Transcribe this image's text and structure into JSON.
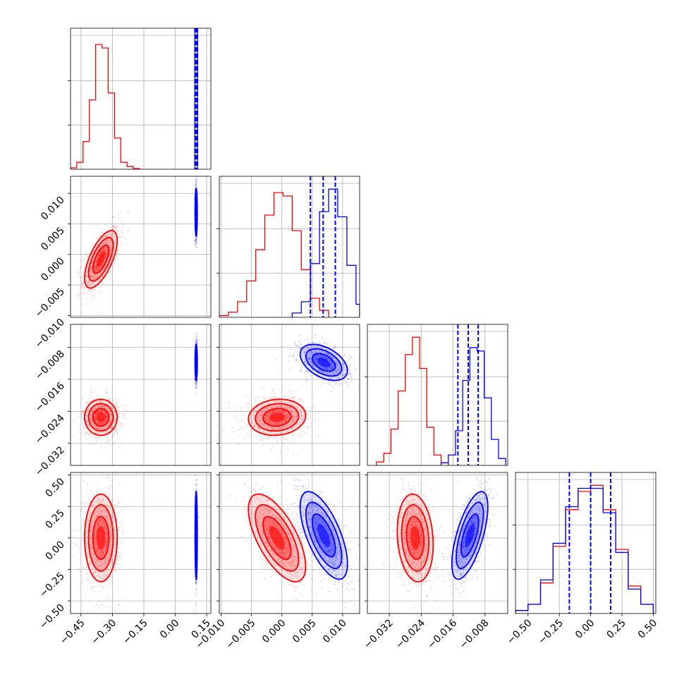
{
  "chart_data": {
    "type": "corner",
    "title": "",
    "grid": true,
    "legend": "none",
    "colors": {
      "series_a": "#ff0000",
      "series_b": "#0000ff"
    },
    "series": [
      {
        "color": "#ff0000"
      },
      {
        "color": "#0000ff"
      }
    ],
    "parameters": [
      {
        "range": [
          -0.5,
          0.17
        ],
        "ticks": [
          -0.45,
          -0.3,
          -0.15,
          0.0,
          0.15
        ],
        "tick_labels": [
          "−0.45",
          "−0.30",
          "−0.15",
          "0.00",
          "0.15"
        ]
      },
      {
        "range": [
          -0.0103,
          0.0128
        ],
        "ticks": [
          -0.01,
          -0.005,
          0.0,
          0.005,
          0.01
        ],
        "tick_labels": [
          "−0.010",
          "−0.005",
          "0.000",
          "0.005",
          "0.010"
        ]
      },
      {
        "range": [
          -0.0375,
          -0.0023
        ],
        "ticks": [
          -0.032,
          -0.024,
          -0.016,
          -0.008
        ],
        "tick_labels": [
          "−0.032",
          "−0.024",
          "−0.016",
          "−0.008"
        ]
      },
      {
        "range": [
          -0.6,
          0.52
        ],
        "ticks": [
          -0.5,
          -0.25,
          0.0,
          0.25,
          0.5
        ],
        "tick_labels": [
          "−0.50",
          "−0.25",
          "0.00",
          "0.25",
          "0.50"
        ]
      }
    ],
    "marginals": [
      {
        "param": 0,
        "red": {
          "edges": [
            -0.5,
            -0.47,
            -0.44,
            -0.41,
            -0.38,
            -0.35,
            -0.32,
            -0.29,
            -0.26,
            -0.23,
            -0.2,
            -0.17
          ],
          "counts": [
            2,
            10,
            40,
            100,
            180,
            175,
            110,
            45,
            10,
            4,
            1
          ]
        },
        "blue": {
          "edges": [
            0.094,
            0.1,
            0.106
          ],
          "counts": [
            400,
            400
          ]
        },
        "quantiles_blue": [
          0.094,
          0.1,
          0.106
        ]
      },
      {
        "param": 1,
        "red": {
          "edges": [
            -0.0103,
            -0.0088,
            -0.0073,
            -0.0058,
            -0.0043,
            -0.0028,
            -0.0013,
            0.0002,
            0.0017,
            0.0032,
            0.0047,
            0.0062,
            0.0077
          ],
          "counts": [
            2,
            6,
            18,
            42,
            78,
            118,
            144,
            140,
            100,
            55,
            22,
            8
          ]
        },
        "blue": {
          "edges": [
            0.0017,
            0.0032,
            0.0047,
            0.0062,
            0.0077,
            0.0092,
            0.0107,
            0.0122,
            0.0128
          ],
          "counts": [
            5,
            18,
            62,
            122,
            148,
            116,
            60,
            15
          ]
        },
        "quantiles_blue": [
          0.0047,
          0.0068,
          0.0088
        ]
      },
      {
        "param": 2,
        "red": {
          "edges": [
            -0.0352,
            -0.0334,
            -0.0316,
            -0.0298,
            -0.028,
            -0.0262,
            -0.0244,
            -0.0226,
            -0.0208,
            -0.019,
            -0.0172
          ],
          "counts": [
            4,
            14,
            42,
            86,
            128,
            148,
            112,
            44,
            12,
            3
          ]
        },
        "blue": {
          "edges": [
            -0.019,
            -0.0172,
            -0.0154,
            -0.0136,
            -0.0118,
            -0.01,
            -0.0082,
            -0.0064,
            -0.0046,
            -0.0028
          ],
          "counts": [
            3,
            12,
            40,
            98,
            136,
            132,
            78,
            30,
            8
          ]
        },
        "quantiles_blue": [
          -0.0148,
          -0.0122,
          -0.0097
        ]
      },
      {
        "param": 3,
        "red": {
          "edges": [
            -0.6,
            -0.5,
            -0.4,
            -0.3,
            -0.2,
            -0.1,
            0.0,
            0.1,
            0.2,
            0.3,
            0.4,
            0.5
          ],
          "counts": [
            1,
            3,
            10,
            22,
            34,
            40,
            42,
            34,
            21,
            9,
            3
          ]
        },
        "blue": {
          "edges": [
            -0.6,
            -0.5,
            -0.4,
            -0.3,
            -0.2,
            -0.1,
            0.0,
            0.1,
            0.2,
            0.3,
            0.4,
            0.5
          ],
          "counts": [
            1,
            3,
            11,
            23,
            35,
            41,
            41,
            33,
            20,
            8,
            3
          ]
        },
        "quantiles_blue": [
          -0.17,
          0.0,
          0.16
        ]
      }
    ],
    "joints": [
      {
        "x": 0,
        "y": 1,
        "red": {
          "mean": [
            -0.355,
            -0.0008
          ],
          "sd": [
            0.038,
            0.0023
          ],
          "corr": 0.65
        },
        "blue": {
          "mean": [
            0.1,
            0.0069
          ],
          "sd": [
            0.0025,
            0.0019
          ],
          "corr": 0.0
        }
      },
      {
        "x": 0,
        "y": 2,
        "red": {
          "mean": [
            -0.355,
            -0.0255
          ],
          "sd": [
            0.038,
            0.0022
          ],
          "corr": 0.0
        },
        "blue": {
          "mean": [
            0.1,
            -0.0118
          ],
          "sd": [
            0.0025,
            0.0022
          ],
          "corr": 0.0
        }
      },
      {
        "x": 1,
        "y": 2,
        "red": {
          "mean": [
            -0.0008,
            -0.0255
          ],
          "sd": [
            0.0023,
            0.0022
          ],
          "corr": 0.1
        },
        "blue": {
          "mean": [
            0.0069,
            -0.0118
          ],
          "sd": [
            0.0019,
            0.0022
          ],
          "corr": -0.45
        }
      },
      {
        "x": 0,
        "y": 3,
        "red": {
          "mean": [
            -0.355,
            0.0
          ],
          "sd": [
            0.038,
            0.17
          ],
          "corr": 0.0
        },
        "blue": {
          "mean": [
            0.1,
            0.02
          ],
          "sd": [
            0.0025,
            0.17
          ],
          "corr": 0.0
        }
      },
      {
        "x": 1,
        "y": 3,
        "red": {
          "mean": [
            -0.0008,
            0.0
          ],
          "sd": [
            0.0023,
            0.17
          ],
          "corr": -0.65
        },
        "blue": {
          "mean": [
            0.0069,
            0.02
          ],
          "sd": [
            0.0019,
            0.17
          ],
          "corr": -0.65
        }
      },
      {
        "x": 2,
        "y": 3,
        "red": {
          "mean": [
            -0.0255,
            0.0
          ],
          "sd": [
            0.0022,
            0.17
          ],
          "corr": -0.15
        },
        "blue": {
          "mean": [
            -0.0118,
            0.02
          ],
          "sd": [
            0.0022,
            0.17
          ],
          "corr": 0.65
        }
      }
    ],
    "contour_levels_sigma": [
      1.0,
      1.55,
      2.05
    ]
  }
}
